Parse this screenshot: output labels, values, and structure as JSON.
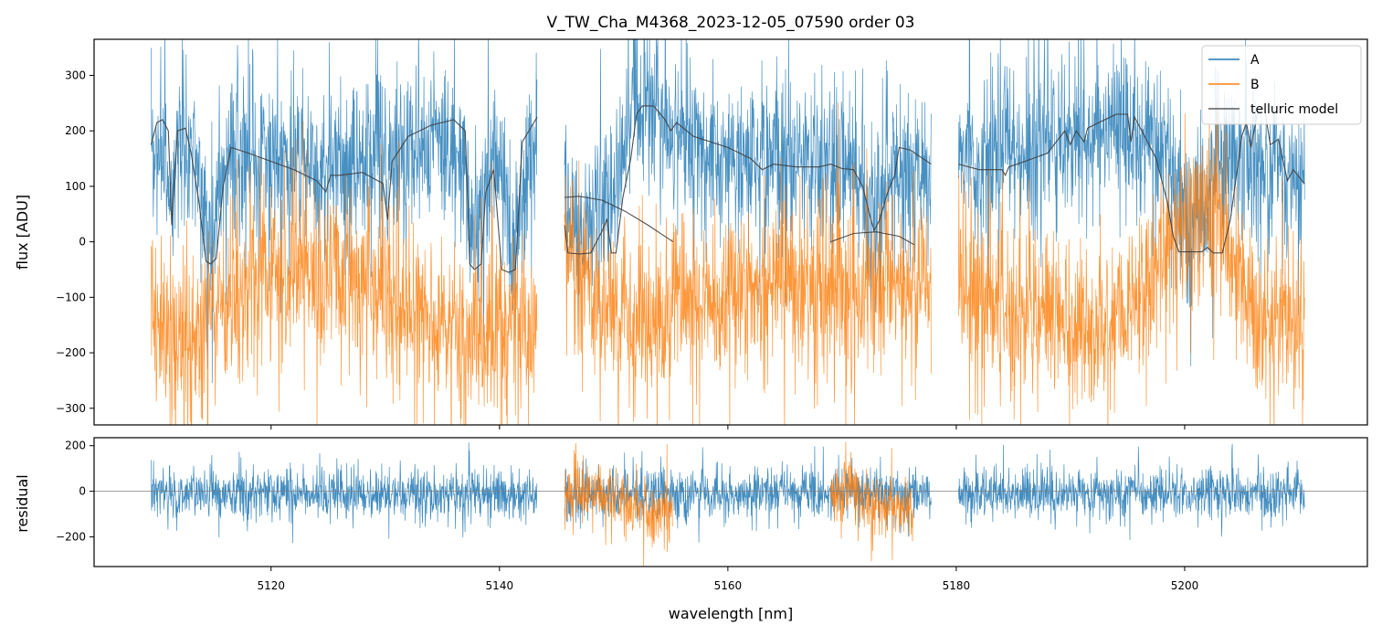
{
  "chart_data": {
    "title": "V_TW_Cha_M4368_2023-12-05_07590  order 03",
    "type": "line",
    "xlabel": "wavelength [nm]",
    "xlim": [
      5104.5,
      5216
    ],
    "x_ticks": [
      5120,
      5140,
      5160,
      5180,
      5200
    ],
    "x_tick_labels": [
      "5120",
      "5140",
      "5160",
      "5180",
      "5200"
    ],
    "segments": [
      [
        5109.5,
        5143.3
      ],
      [
        5145.7,
        5177.8
      ],
      [
        5180.2,
        5210.5
      ]
    ],
    "colors": {
      "A": "#1f77b4",
      "B": "#ff7f0e",
      "telluric": "#3c3c3c",
      "zero": "#808080"
    },
    "top": {
      "ylabel": "flux [ADU]",
      "ylim": [
        -330,
        365
      ],
      "y_ticks": [
        -300,
        -200,
        -100,
        0,
        100,
        200,
        300
      ],
      "y_tick_labels": [
        "−300",
        "−200",
        "−100",
        "0",
        "100",
        "200",
        "300"
      ],
      "legend": {
        "placement": "top-right",
        "entries": [
          {
            "label": "A",
            "color": "#1f77b4"
          },
          {
            "label": "B",
            "color": "#ff7f0e"
          },
          {
            "label": "telluric model",
            "color": "#3c3c3c"
          }
        ]
      },
      "series": [
        {
          "name": "A",
          "noise": 70,
          "baseline_x": [
            5109.5,
            5112,
            5116,
            5120,
            5125,
            5130,
            5136,
            5140,
            5143.3,
            5145.7,
            5150,
            5152,
            5155,
            5160,
            5165,
            5170,
            5174,
            5177.8,
            5180.2,
            5185,
            5190,
            5195,
            5200,
            5205,
            5210.5
          ],
          "baseline_y": [
            150,
            190,
            150,
            150,
            130,
            160,
            180,
            150,
            170,
            90,
            110,
            250,
            200,
            160,
            145,
            140,
            120,
            130,
            150,
            150,
            190,
            200,
            170,
            140,
            120
          ],
          "dips": [
            [
              5111.2,
              0.35,
              120
            ],
            [
              5114.7,
              0.9,
              150
            ],
            [
              5130.2,
              0.2,
              80
            ],
            [
              5137.8,
              0.9,
              150
            ],
            [
              5141.2,
              0.9,
              150
            ],
            [
              5147.5,
              1.5,
              80
            ],
            [
              5172.6,
              0.6,
              110
            ],
            [
              5200.5,
              1.8,
              130
            ]
          ]
        },
        {
          "name": "B",
          "noise": 75,
          "baseline_x": [
            5109.5,
            5112,
            5115,
            5118,
            5122,
            5126,
            5130,
            5134,
            5138,
            5142,
            5143.3,
            5145.7,
            5148,
            5152,
            5156,
            5160,
            5165,
            5170,
            5174,
            5177.8,
            5180.2,
            5185,
            5190,
            5195,
            5198,
            5200,
            5203,
            5207,
            5210.5
          ],
          "baseline_y": [
            -120,
            -190,
            -150,
            -60,
            -50,
            -70,
            -90,
            -140,
            -180,
            -130,
            -120,
            10,
            -80,
            -170,
            -120,
            -90,
            -60,
            -110,
            -70,
            -80,
            -70,
            -120,
            -150,
            -130,
            -30,
            50,
            30,
            -150,
            -130
          ],
          "dips": []
        },
        {
          "name": "telluric model A",
          "x": [
            5109.5,
            5110,
            5110.5,
            5111,
            5111.3,
            5111.8,
            5112.5,
            5113,
            5113.7,
            5114.3,
            5114.7,
            5115.2,
            5115.8,
            5116.5,
            5118,
            5120,
            5122,
            5124,
            5124.8,
            5125.2,
            5126,
            5128,
            5129.8,
            5130.2,
            5130.6,
            5132,
            5134,
            5136,
            5137,
            5137.4,
            5137.8,
            5138.4,
            5138.8,
            5139.5,
            5140.2,
            5140.8,
            5141.4,
            5142,
            5143.3
          ],
          "y": [
            175,
            215,
            220,
            200,
            30,
            200,
            205,
            160,
            70,
            -35,
            -40,
            -30,
            100,
            170,
            160,
            145,
            130,
            110,
            90,
            120,
            120,
            125,
            105,
            40,
            145,
            190,
            210,
            220,
            200,
            -40,
            -50,
            -40,
            90,
            130,
            -50,
            -55,
            -50,
            180,
            225
          ]
        },
        {
          "name": "telluric model B1",
          "x": [
            5145.7,
            5146,
            5147,
            5148,
            5149,
            5149.4,
            5149.8,
            5150.2,
            5150.8,
            5151.5,
            5152,
            5152.5,
            5153.5,
            5154.5,
            5155,
            5155.5,
            5157,
            5160,
            5162,
            5163,
            5164,
            5166,
            5168,
            5169,
            5170,
            5171,
            5171.8,
            5172.4,
            5172.8,
            5173.3,
            5174,
            5174.6,
            5175,
            5176,
            5177.8
          ],
          "y": [
            30,
            -20,
            -22,
            -20,
            20,
            40,
            -20,
            -20,
            80,
            150,
            230,
            245,
            245,
            220,
            200,
            215,
            190,
            170,
            150,
            130,
            140,
            135,
            135,
            140,
            132,
            130,
            100,
            50,
            20,
            40,
            90,
            120,
            170,
            165,
            140
          ]
        },
        {
          "name": "telluric model B2",
          "x": [
            5145.7,
            5147,
            5149,
            5151,
            5153,
            5155.2
          ],
          "y": [
            80,
            82,
            75,
            55,
            30,
            0
          ]
        },
        {
          "name": "telluric model B3",
          "x": [
            5169,
            5171,
            5173,
            5175,
            5176.3
          ],
          "y": [
            0,
            15,
            18,
            10,
            -5
          ]
        },
        {
          "name": "telluric model C",
          "x": [
            5180.2,
            5182,
            5184,
            5184.3,
            5184.6,
            5186,
            5188,
            5189.5,
            5190,
            5190.5,
            5191.2,
            5191.5,
            5192,
            5194,
            5195,
            5195.3,
            5195.6,
            5196.5,
            5197.5,
            5198.5,
            5199,
            5199.5,
            5201.5,
            5202,
            5202.5,
            5203.3,
            5204,
            5205,
            5205.4,
            5205.8,
            5206.4,
            5207,
            5207.5,
            5208.2,
            5209,
            5209.5,
            5210.5
          ],
          "y": [
            140,
            130,
            130,
            120,
            135,
            145,
            160,
            200,
            175,
            200,
            180,
            205,
            210,
            230,
            230,
            180,
            225,
            190,
            150,
            70,
            10,
            -18,
            -18,
            -10,
            -20,
            -20,
            40,
            190,
            215,
            170,
            235,
            240,
            175,
            185,
            110,
            130,
            105
          ]
        }
      ]
    },
    "bottom": {
      "ylabel": "residual",
      "ylim": [
        -330,
        235
      ],
      "y_ticks": [
        -200,
        0,
        200
      ],
      "y_tick_labels": [
        "−200",
        "0",
        "200"
      ],
      "zero_line": 0,
      "series": [
        {
          "name": "A residual",
          "noise": 55,
          "ranges": [
            [
              5109.5,
              5143.3
            ],
            [
              5145.7,
              5177.8
            ],
            [
              5180.2,
              5210.5
            ]
          ],
          "offset": -10
        },
        {
          "name": "B residual",
          "noise": 70,
          "ranges": [
            [
              5145.7,
              5155.2
            ],
            [
              5169,
              5176.2
            ]
          ],
          "offset": -80
        }
      ]
    }
  }
}
